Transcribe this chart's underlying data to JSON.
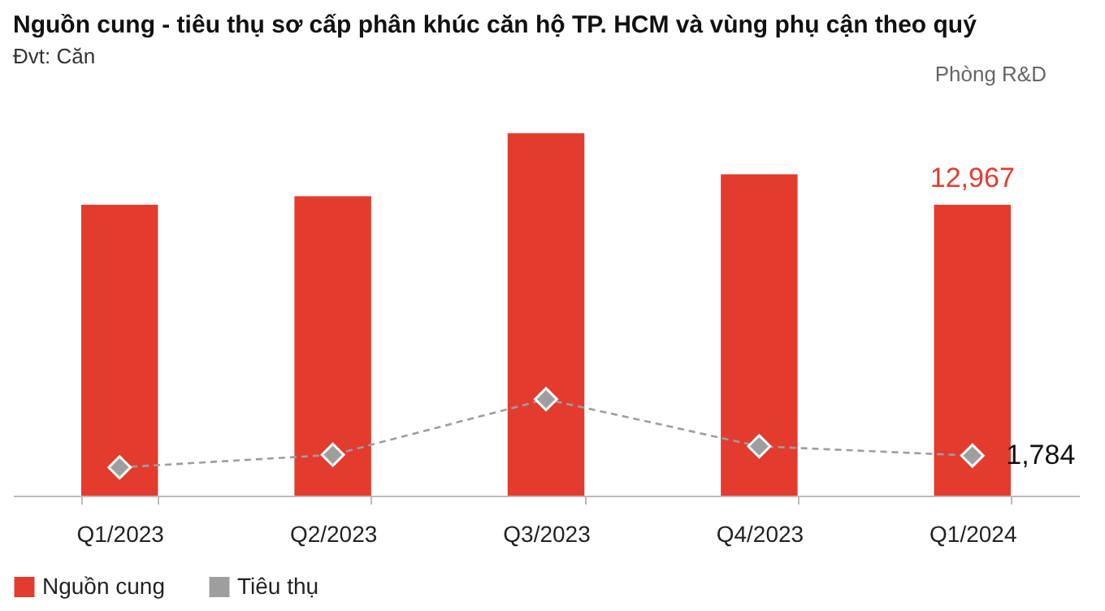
{
  "chart_data": {
    "type": "bar",
    "title": "Nguồn cung - tiêu thụ sơ cấp phân khúc căn hộ TP. HCM và vùng phụ cận theo quý",
    "subtitle": "Đvt: Căn",
    "annotations": [
      "Phòng R&D"
    ],
    "categories": [
      "Q1/2023",
      "Q2/2023",
      "Q3/2023",
      "Q4/2023",
      "Q1/2024"
    ],
    "series": [
      {
        "name": "Nguồn cung",
        "color": "#e43b2f",
        "values": [
          12970,
          13350,
          16160,
          14330,
          12967
        ],
        "value_labels": [
          null,
          null,
          null,
          null,
          "12,967"
        ]
      },
      {
        "name": "Tiêu thụ",
        "type": "line",
        "color": "#9e9e9e",
        "values": [
          1260,
          1820,
          4300,
          2200,
          1784
        ],
        "value_labels": [
          null,
          null,
          null,
          null,
          "1,784"
        ]
      }
    ],
    "tick_labels": "x",
    "grid": false,
    "legend": "bottom",
    "marker": "diamond",
    "line_style": "dashed"
  }
}
